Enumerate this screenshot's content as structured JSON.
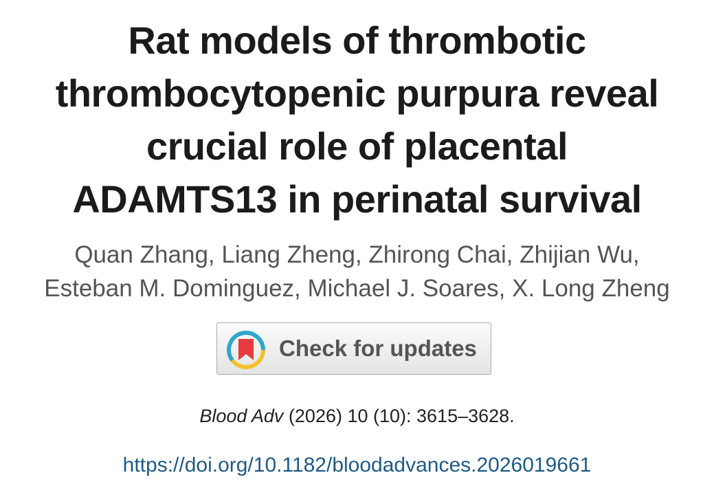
{
  "header": {
    "title_lines": [
      "Rat models of thrombotic",
      "thrombocytopenic purpura reveal",
      "crucial role of placental",
      "ADAMTS13 in perinatal survival"
    ],
    "author_lines": [
      "Quan Zhang, Liang Zheng, Zhirong Chai, Zhijian Wu,",
      "Esteban M. Dominguez, Michael J. Soares, X. Long Zheng"
    ]
  },
  "updates_button": {
    "label": "Check for updates"
  },
  "citation": {
    "journal": "Blood Adv",
    "details": "(2026) 10 (10): 3615–3628."
  },
  "doi": {
    "url": "https://doi.org/10.1182/bloodadvances.2026019661"
  }
}
